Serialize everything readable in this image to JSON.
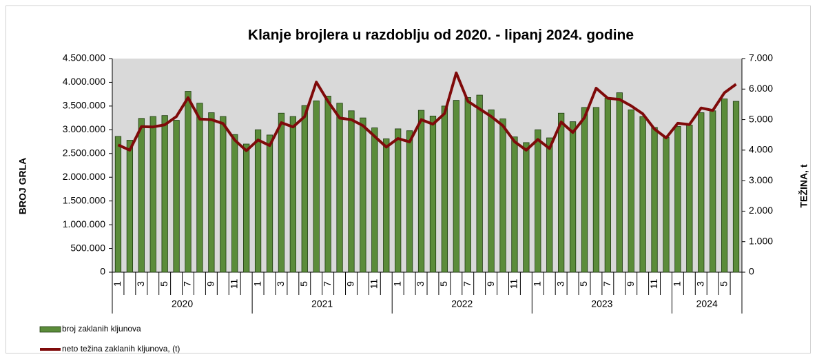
{
  "chart_data": {
    "type": "bar-line",
    "title": "Klanje brojlera u razdoblju od 2020. - lipanj 2024. godine",
    "y_label": "BROJ GRLA",
    "y2_label": "TEŽINA, t",
    "categories": [
      "1",
      null,
      "3",
      null,
      "5",
      null,
      "7",
      null,
      "9",
      null,
      "11",
      null,
      "1",
      null,
      "3",
      null,
      "5",
      null,
      "7",
      null,
      "9",
      null,
      "11",
      null,
      "1",
      null,
      "3",
      null,
      "5",
      null,
      "7",
      null,
      "9",
      null,
      "11",
      null,
      "1",
      null,
      "3",
      null,
      "5",
      null,
      "7",
      null,
      "9",
      null,
      "11",
      null,
      "1",
      null,
      "3",
      null,
      "5",
      null
    ],
    "x_groups": [
      "2020",
      "2021",
      "2022",
      "2023",
      "2024"
    ],
    "series": [
      {
        "name": "broj zaklanih kljunova",
        "color": "#5b8c3a",
        "type": "bar",
        "values": [
          2860000,
          2780000,
          3240000,
          3280000,
          3300000,
          3200000,
          3810000,
          3560000,
          3360000,
          3280000,
          2900000,
          2700000,
          3000000,
          2890000,
          3350000,
          3280000,
          3510000,
          3610000,
          3710000,
          3560000,
          3400000,
          3250000,
          3040000,
          2810000,
          3020000,
          2980000,
          3410000,
          3290000,
          3500000,
          3620000,
          3680000,
          3730000,
          3420000,
          3230000,
          2850000,
          2730000,
          3000000,
          2830000,
          3350000,
          3170000,
          3470000,
          3470000,
          3670000,
          3780000,
          3420000,
          3280000,
          3050000,
          2840000,
          3070000,
          3100000,
          3360000,
          3400000,
          3650000,
          3600000
        ]
      },
      {
        "name": "neto težina zaklanih kljunova, (t)",
        "color": "#7f0a0a",
        "type": "line",
        "axis": "y2",
        "values": [
          4170,
          4000,
          4770,
          4760,
          4830,
          5100,
          5720,
          5020,
          5000,
          4870,
          4330,
          3980,
          4330,
          4150,
          4900,
          4760,
          5100,
          6230,
          5600,
          5050,
          5000,
          4800,
          4450,
          4100,
          4380,
          4270,
          5000,
          4850,
          5200,
          6530,
          5600,
          5350,
          5100,
          4800,
          4280,
          4000,
          4350,
          4050,
          4920,
          4580,
          5070,
          6030,
          5700,
          5660,
          5450,
          5190,
          4690,
          4400,
          4880,
          4840,
          5380,
          5300,
          5880,
          6160
        ]
      }
    ],
    "ylim": [
      0,
      4500000
    ],
    "yticks": [
      0,
      {
        "value": 500000,
        "label": "500.000"
      },
      {
        "value": 1000000,
        "label": "1.000.000"
      },
      {
        "value": 1500000,
        "label": "1.500.000"
      },
      {
        "value": 2000000,
        "label": "2.000.000"
      },
      {
        "value": 2500000,
        "label": "2.500.000"
      },
      {
        "value": 3000000,
        "label": "3.000.000"
      },
      {
        "value": 3500000,
        "label": "3.500.000"
      },
      {
        "value": 4000000,
        "label": "4.000.000"
      },
      {
        "value": 4500000,
        "label": "4.500.000"
      }
    ],
    "y2lim": [
      0,
      7000
    ],
    "y2ticks": [
      0,
      {
        "value": 1000,
        "label": "1.000"
      },
      {
        "value": 2000,
        "label": "2.000"
      },
      {
        "value": 3000,
        "label": "3.000"
      },
      {
        "value": 4000,
        "label": "4.000"
      },
      {
        "value": 5000,
        "label": "5.000"
      },
      {
        "value": 6000,
        "label": "6.000"
      },
      {
        "value": 7000,
        "label": "7.000"
      }
    ],
    "plot_background": "#d9d9d9"
  }
}
